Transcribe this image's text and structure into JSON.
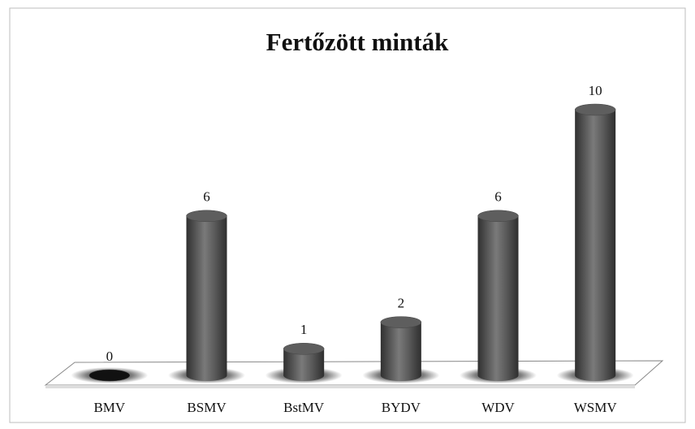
{
  "chart_data": {
    "type": "bar",
    "title": "Fertőzött minták",
    "categories": [
      "BMV",
      "BSMV",
      "BstMV",
      "BYDV",
      "WDV",
      "WSMV"
    ],
    "values": [
      0,
      6,
      1,
      2,
      6,
      10
    ],
    "color": "#555555",
    "ylim": [
      0,
      10
    ]
  }
}
